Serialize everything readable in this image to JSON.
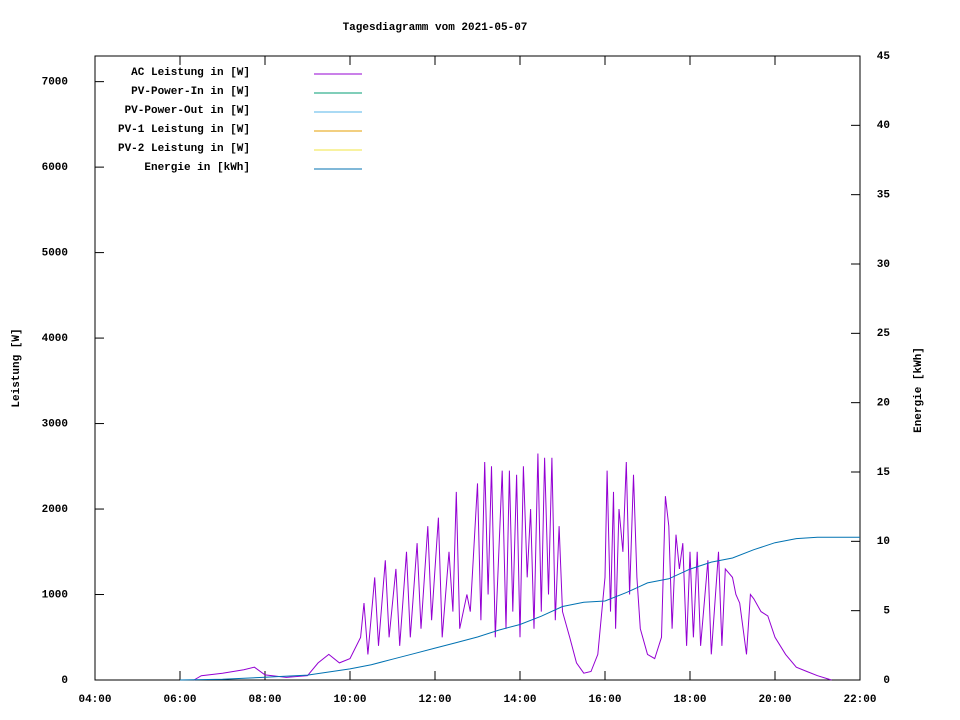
{
  "chart_data": {
    "type": "line",
    "title": "Tagesdiagramm vom 2021-05-07",
    "ylabel": "Leistung [W]",
    "y2label": "Energie [kWh]",
    "xlim": [
      4,
      22
    ],
    "xticks": [
      {
        "value": 4,
        "label": "04:00"
      },
      {
        "value": 6,
        "label": "06:00"
      },
      {
        "value": 8,
        "label": "08:00"
      },
      {
        "value": 10,
        "label": "10:00"
      },
      {
        "value": 12,
        "label": "12:00"
      },
      {
        "value": 14,
        "label": "14:00"
      },
      {
        "value": 16,
        "label": "16:00"
      },
      {
        "value": 18,
        "label": "18:00"
      },
      {
        "value": 20,
        "label": "20:00"
      },
      {
        "value": 22,
        "label": "22:00"
      }
    ],
    "ylim": [
      0,
      7300
    ],
    "yticks": [
      0,
      1000,
      2000,
      3000,
      4000,
      5000,
      6000,
      7000
    ],
    "y2lim": [
      0,
      45
    ],
    "y2ticks": [
      0,
      5,
      10,
      15,
      20,
      25,
      30,
      35,
      40,
      45
    ],
    "legend": "top-left",
    "series": [
      {
        "name": "AC Leistung in [W]",
        "color": "#9400d3",
        "x": [
          6.33,
          6.5,
          7,
          7.5,
          7.75,
          8,
          8.5,
          9,
          9.25,
          9.5,
          9.75,
          10,
          10.25,
          10.33,
          10.42,
          10.58,
          10.67,
          10.83,
          10.92,
          11.08,
          11.17,
          11.33,
          11.42,
          11.58,
          11.67,
          11.83,
          11.92,
          12.08,
          12.17,
          12.33,
          12.42,
          12.5,
          12.58,
          12.75,
          12.83,
          13,
          13.08,
          13.17,
          13.25,
          13.33,
          13.42,
          13.58,
          13.67,
          13.75,
          13.83,
          13.92,
          14,
          14.08,
          14.17,
          14.25,
          14.33,
          14.42,
          14.5,
          14.58,
          14.67,
          14.75,
          14.83,
          14.92,
          15,
          15.17,
          15.33,
          15.5,
          15.67,
          15.83,
          16,
          16.05,
          16.13,
          16.2,
          16.25,
          16.33,
          16.42,
          16.5,
          16.58,
          16.67,
          16.75,
          16.83,
          17,
          17.17,
          17.33,
          17.42,
          17.5,
          17.58,
          17.67,
          17.75,
          17.83,
          17.92,
          18,
          18.08,
          18.17,
          18.25,
          18.42,
          18.5,
          18.67,
          18.75,
          18.83,
          19,
          19.08,
          19.17,
          19.33,
          19.42,
          19.5,
          19.67,
          19.83,
          20,
          20.25,
          20.5,
          20.75,
          21,
          21.33
        ],
        "values": [
          0,
          50,
          80,
          120,
          150,
          60,
          30,
          50,
          200,
          300,
          200,
          250,
          500,
          900,
          300,
          1200,
          400,
          1400,
          500,
          1300,
          400,
          1500,
          500,
          1600,
          600,
          1800,
          700,
          1900,
          500,
          1500,
          800,
          2200,
          600,
          1000,
          800,
          2300,
          700,
          2550,
          1000,
          2500,
          500,
          2450,
          600,
          2450,
          800,
          2400,
          500,
          2500,
          1200,
          2000,
          600,
          2650,
          800,
          2600,
          1000,
          2600,
          700,
          1800,
          800,
          500,
          200,
          80,
          100,
          300,
          1200,
          2450,
          800,
          2200,
          600,
          2000,
          1500,
          2550,
          1000,
          2400,
          1200,
          600,
          300,
          250,
          500,
          2150,
          1800,
          600,
          1700,
          1300,
          1600,
          400,
          1500,
          500,
          1500,
          400,
          1400,
          300,
          1500,
          400,
          1300,
          1200,
          1000,
          900,
          300,
          1000,
          950,
          800,
          750,
          500,
          300,
          150,
          100,
          50,
          0
        ]
      },
      {
        "name": "PV-Power-In in [W]",
        "color": "#009e73",
        "x": [],
        "values": []
      },
      {
        "name": "PV-Power-Out in [W]",
        "color": "#56b4e9",
        "x": [],
        "values": []
      },
      {
        "name": "PV-1 Leistung in [W]",
        "color": "#e69f00",
        "x": [],
        "values": []
      },
      {
        "name": "PV-2 Leistung in [W]",
        "color": "#f0e442",
        "x": [],
        "values": []
      },
      {
        "name": "Energie in [kWh]",
        "color": "#0072b2",
        "axis": "y2",
        "x": [
          6,
          7,
          8,
          9,
          10,
          10.5,
          11,
          11.5,
          12,
          12.5,
          13,
          13.5,
          14,
          14.5,
          15,
          15.5,
          16,
          16.5,
          17,
          17.5,
          18,
          18.5,
          19,
          19.5,
          20,
          20.5,
          21,
          22
        ],
        "values": [
          0,
          0.05,
          0.2,
          0.35,
          0.8,
          1.1,
          1.5,
          1.9,
          2.3,
          2.7,
          3.1,
          3.6,
          4.0,
          4.6,
          5.3,
          5.6,
          5.7,
          6.3,
          7.0,
          7.3,
          8.0,
          8.5,
          8.8,
          9.4,
          9.9,
          10.2,
          10.3,
          10.3
        ]
      }
    ]
  }
}
